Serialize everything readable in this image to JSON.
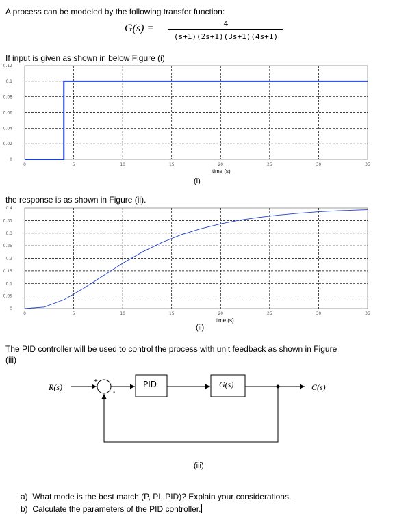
{
  "intro": "A process can be modeled by the following transfer function:",
  "transfer_function": {
    "lhs": "G(s) =",
    "numerator": "4",
    "denominator": "(s+1)(2s+1)(3s+1)(4s+1)"
  },
  "input_text": "If input is given as shown in below Figure (i)",
  "response_text": "the response is as shown in Figure (ii).",
  "pid_text_line1": "The PID controller will be used to control the process with unit feedback as shown in Figure",
  "pid_text_line2": "(iii)",
  "figure_i": {
    "caption": "(i)",
    "xlabel": "time (s)"
  },
  "figure_ii": {
    "caption": "(ii)",
    "xlabel": "time (s)"
  },
  "figure_iii": {
    "caption": "(iii)",
    "input_label": "R(s)",
    "output_label": "C(s)",
    "controller_label": "PID",
    "plant_label": "G(s)",
    "plus_sign": "+",
    "minus_sign": "-"
  },
  "questions": [
    {
      "marker": "a)",
      "text": "What mode is the best match (P, PI, PID)? Explain your considerations."
    },
    {
      "marker": "b)",
      "text": "Calculate the parameters of the PID controller."
    }
  ],
  "chart_data": [
    {
      "type": "line",
      "figure": "(i)",
      "xlabel": "time (s)",
      "ylabel": "",
      "xlim": [
        0,
        35
      ],
      "ylim": [
        0,
        0.12
      ],
      "x_ticks": [
        "0",
        "5",
        "10",
        "15",
        "20",
        "25",
        "30",
        "35"
      ],
      "y_ticks": [
        "0",
        "0.02",
        "0.04",
        "0.06",
        "0.08",
        "0.1",
        "0.12"
      ],
      "grid": true,
      "color": "#1f3fcf",
      "series": [
        {
          "x": [
            0,
            4,
            4,
            35
          ],
          "y": [
            0,
            0,
            0.1,
            0.1
          ]
        }
      ]
    },
    {
      "type": "line",
      "figure": "(ii)",
      "xlabel": "time (s)",
      "ylabel": "",
      "xlim": [
        0,
        35
      ],
      "ylim": [
        0,
        0.4
      ],
      "x_ticks": [
        "0",
        "5",
        "10",
        "15",
        "20",
        "25",
        "30",
        "35"
      ],
      "y_ticks": [
        "0",
        "0.05",
        "0.1",
        "0.15",
        "0.2",
        "0.25",
        "0.3",
        "0.35",
        "0.4"
      ],
      "grid": true,
      "color": "#1f3fcf",
      "series": [
        {
          "x": [
            0,
            2,
            4,
            6,
            8,
            10,
            12,
            14,
            16,
            18,
            20,
            22,
            24,
            26,
            28,
            30,
            32,
            35
          ],
          "y": [
            0,
            0.006,
            0.035,
            0.08,
            0.13,
            0.18,
            0.225,
            0.263,
            0.294,
            0.318,
            0.337,
            0.352,
            0.363,
            0.372,
            0.379,
            0.385,
            0.389,
            0.393
          ]
        }
      ]
    }
  ]
}
